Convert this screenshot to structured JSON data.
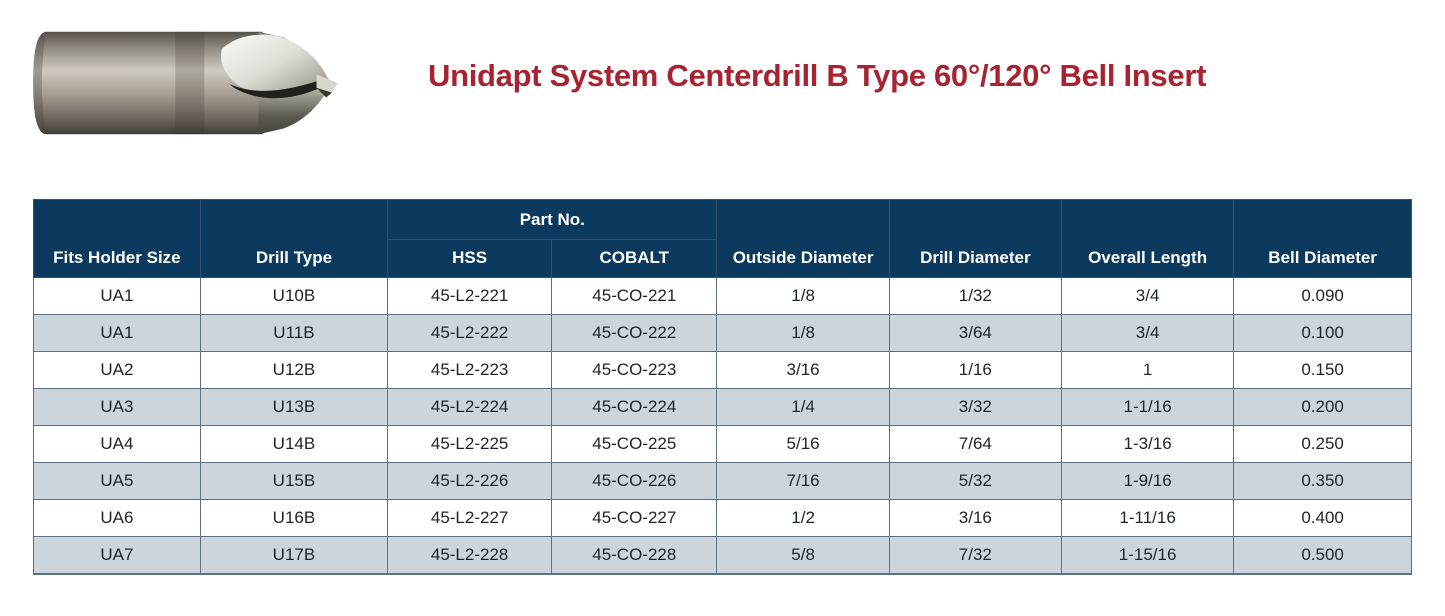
{
  "header": {
    "title": "Unidapt System Centerdrill B Type 60°/120° Bell Insert",
    "title_color": "#a6242f"
  },
  "product_image": {
    "description": "centerdrill bell insert photo"
  },
  "table": {
    "colors": {
      "header_bg": "#0b3a5e",
      "header_text": "#ffffff",
      "row_alt_bg": "#ccd4dc",
      "border": "#5f7080",
      "cell_text": "#1e232b"
    },
    "part_no_group_label": "Part No.",
    "columns": [
      "Fits Holder Size",
      "Drill Type",
      "HSS",
      "COBALT",
      "Outside Diameter",
      "Drill Diameter",
      "Overall Length",
      "Bell Diameter"
    ],
    "rows": [
      [
        "UA1",
        "U10B",
        "45-L2-221",
        "45-CO-221",
        "1/8",
        "1/32",
        "3/4",
        "0.090"
      ],
      [
        "UA1",
        "U11B",
        "45-L2-222",
        "45-CO-222",
        "1/8",
        "3/64",
        "3/4",
        "0.100"
      ],
      [
        "UA2",
        "U12B",
        "45-L2-223",
        "45-CO-223",
        "3/16",
        "1/16",
        "1",
        "0.150"
      ],
      [
        "UA3",
        "U13B",
        "45-L2-224",
        "45-CO-224",
        "1/4",
        "3/32",
        "1-1/16",
        "0.200"
      ],
      [
        "UA4",
        "U14B",
        "45-L2-225",
        "45-CO-225",
        "5/16",
        "7/64",
        "1-3/16",
        "0.250"
      ],
      [
        "UA5",
        "U15B",
        "45-L2-226",
        "45-CO-226",
        "7/16",
        "5/32",
        "1-9/16",
        "0.350"
      ],
      [
        "UA6",
        "U16B",
        "45-L2-227",
        "45-CO-227",
        "1/2",
        "3/16",
        "1-11/16",
        "0.400"
      ],
      [
        "UA7",
        "U17B",
        "45-L2-228",
        "45-CO-228",
        "5/8",
        "7/32",
        "1-15/16",
        "0.500"
      ]
    ]
  }
}
